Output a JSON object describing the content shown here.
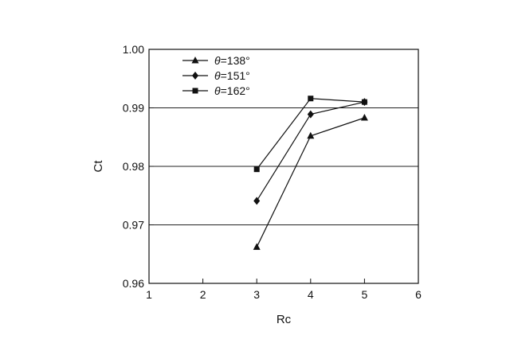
{
  "chart_data": {
    "type": "line",
    "xlabel": "Rc",
    "ylabel": "Ct",
    "xlim": [
      1,
      6
    ],
    "ylim": [
      0.96,
      1.0
    ],
    "x_ticks": [
      "1",
      "2",
      "3",
      "4",
      "5",
      "6"
    ],
    "y_ticks": [
      "0.96",
      "0.97",
      "0.98",
      "0.99",
      "1.00"
    ],
    "grid": "horizontal",
    "legend_position": "top-left",
    "x": [
      3,
      4,
      5
    ],
    "series": [
      {
        "symbol": "θ",
        "label": "=138°",
        "marker": "triangle",
        "values": [
          0.9662,
          0.9852,
          0.9883
        ]
      },
      {
        "symbol": "θ",
        "label": "=151°",
        "marker": "diamond",
        "values": [
          0.9741,
          0.9889,
          0.991
        ]
      },
      {
        "symbol": "θ",
        "label": "=162°",
        "marker": "square",
        "values": [
          0.9795,
          0.9916,
          0.991
        ]
      }
    ]
  }
}
